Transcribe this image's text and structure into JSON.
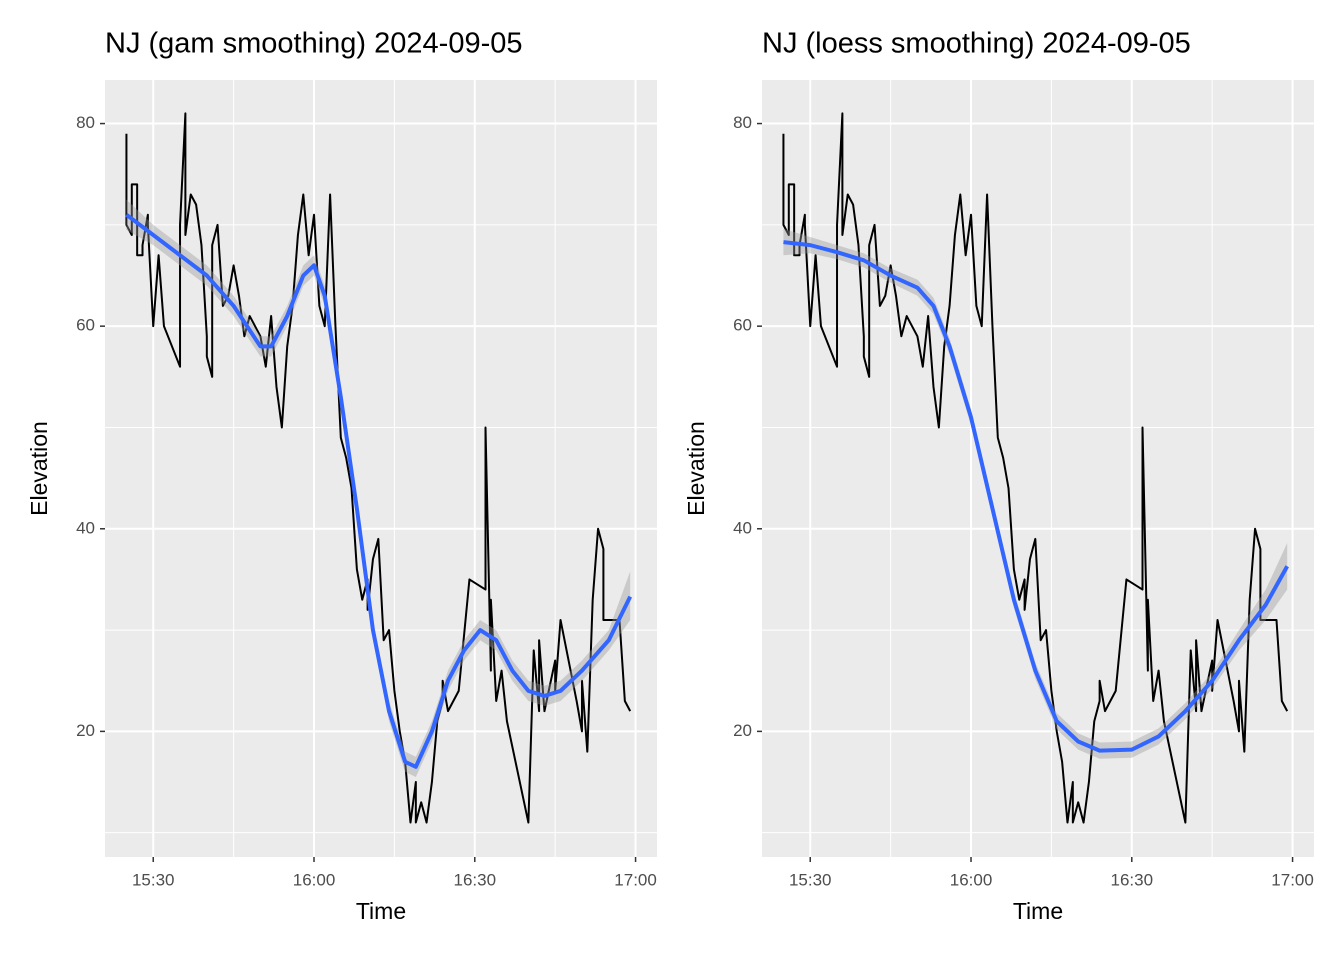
{
  "chart_data": [
    {
      "type": "line",
      "title": "NJ (gam smoothing) 2024-09-05",
      "xlabel": "Time",
      "ylabel": "Elevation",
      "xlim": [
        "15:21",
        "17:04"
      ],
      "xticks": [
        "15:30",
        "16:00",
        "16:30",
        "17:00"
      ],
      "minor_xticks": [
        "15:45",
        "16:15",
        "16:45"
      ],
      "ylim": [
        7.6,
        84.3
      ],
      "yticks": [
        20,
        40,
        60,
        80
      ],
      "minor_yticks": [
        10,
        30,
        50,
        70
      ],
      "grid": true,
      "series": [
        {
          "color": "#000000",
          "x": [
            "15:25",
            "15:25",
            "15:26",
            "15:26",
            "15:27",
            "15:27",
            "15:28",
            "15:28",
            "15:29",
            "15:29",
            "15:30",
            "15:30",
            "15:31",
            "15:32",
            "15:35",
            "15:35",
            "15:36",
            "15:36",
            "15:37",
            "15:38",
            "15:39",
            "15:40",
            "15:40",
            "15:41",
            "15:41",
            "15:42",
            "15:43",
            "15:44",
            "15:45",
            "15:46",
            "15:47",
            "15:48",
            "15:49",
            "15:50",
            "15:51",
            "15:52",
            "15:53",
            "15:54",
            "15:55",
            "15:56",
            "15:57",
            "15:58",
            "15:59",
            "16:00",
            "16:01",
            "16:02",
            "16:03",
            "16:04",
            "16:05",
            "16:06",
            "16:07",
            "16:08",
            "16:09",
            "16:10",
            "16:10",
            "16:11",
            "16:12",
            "16:13",
            "16:14",
            "16:15",
            "16:16",
            "16:17",
            "16:18",
            "16:19",
            "16:19",
            "16:20",
            "16:21",
            "16:22",
            "16:23",
            "16:24",
            "16:24",
            "16:25",
            "16:27",
            "16:29",
            "16:32",
            "16:32",
            "16:33",
            "16:33",
            "16:34",
            "16:35",
            "16:36",
            "16:40",
            "16:41",
            "16:42",
            "16:42",
            "16:43",
            "16:45",
            "16:45",
            "16:46",
            "16:49",
            "16:50",
            "16:50",
            "16:51",
            "16:52",
            "16:53",
            "16:54",
            "16:54",
            "16:57",
            "16:58",
            "16:59"
          ],
          "values": [
            79,
            70,
            69,
            74,
            74,
            67,
            67,
            68,
            71,
            70,
            60,
            60,
            67,
            60,
            56,
            70,
            81,
            69,
            73,
            72,
            68,
            59,
            57,
            55,
            68,
            70,
            62,
            63,
            66,
            63,
            59,
            61,
            60,
            59,
            56,
            61,
            54,
            50,
            58,
            62,
            69,
            73,
            67,
            71,
            62,
            60,
            73,
            60,
            49,
            47,
            44,
            36,
            33,
            35,
            32,
            37,
            39,
            29,
            30,
            24,
            20,
            17,
            11,
            15,
            11,
            13,
            11,
            15,
            21,
            23,
            25,
            22,
            24,
            35,
            34,
            50,
            26,
            33,
            23,
            26,
            21,
            11,
            28,
            22,
            29,
            22,
            27,
            24,
            31,
            23,
            20,
            25,
            18,
            33,
            40,
            38,
            31,
            31,
            23,
            22
          ]
        },
        {
          "color": "#3366ff",
          "band_color": "#999999",
          "x": [
            "15:25",
            "15:30",
            "15:35",
            "15:40",
            "15:45",
            "15:50",
            "15:52",
            "15:55",
            "15:58",
            "16:00",
            "16:02",
            "16:05",
            "16:08",
            "16:11",
            "16:14",
            "16:17",
            "16:19",
            "16:22",
            "16:25",
            "16:28",
            "16:31",
            "16:34",
            "16:37",
            "16:40",
            "16:43",
            "16:46",
            "16:50",
            "16:55",
            "16:59"
          ],
          "values": [
            71,
            69,
            67,
            65,
            62,
            58,
            58,
            61,
            65,
            66,
            63,
            53,
            42,
            30,
            22,
            17,
            16.5,
            20,
            25,
            28,
            30,
            29,
            26,
            24,
            23.5,
            24,
            26,
            29,
            33.3
          ],
          "lower": [
            69.5,
            68,
            66,
            64,
            61,
            57,
            57,
            60,
            64,
            65,
            62,
            52,
            41,
            29,
            21,
            16,
            15.5,
            19,
            24,
            27,
            29,
            28,
            25,
            23,
            22.5,
            23,
            25,
            28,
            31
          ],
          "upper": [
            72.5,
            70,
            68,
            66,
            63,
            59,
            59,
            62,
            66,
            67,
            64,
            54,
            43,
            31,
            23,
            18,
            17.5,
            21,
            26,
            29,
            31,
            30,
            27,
            25,
            24.5,
            25,
            27,
            30,
            35.8
          ]
        }
      ]
    },
    {
      "type": "line",
      "title": "NJ (loess smoothing) 2024-09-05",
      "xlabel": "Time",
      "ylabel": "Elevation",
      "xlim": [
        "15:21",
        "17:04"
      ],
      "xticks": [
        "15:30",
        "16:00",
        "16:30",
        "17:00"
      ],
      "minor_xticks": [
        "15:45",
        "16:15",
        "16:45"
      ],
      "ylim": [
        7.6,
        84.3
      ],
      "yticks": [
        20,
        40,
        60,
        80
      ],
      "minor_yticks": [
        10,
        30,
        50,
        70
      ],
      "grid": true,
      "series": [
        {
          "color": "#000000",
          "x": [
            "15:25",
            "15:25",
            "15:26",
            "15:26",
            "15:27",
            "15:27",
            "15:28",
            "15:28",
            "15:29",
            "15:29",
            "15:30",
            "15:30",
            "15:31",
            "15:32",
            "15:35",
            "15:35",
            "15:36",
            "15:36",
            "15:37",
            "15:38",
            "15:39",
            "15:40",
            "15:40",
            "15:41",
            "15:41",
            "15:42",
            "15:43",
            "15:44",
            "15:45",
            "15:46",
            "15:47",
            "15:48",
            "15:49",
            "15:50",
            "15:51",
            "15:52",
            "15:53",
            "15:54",
            "15:55",
            "15:56",
            "15:57",
            "15:58",
            "15:59",
            "16:00",
            "16:01",
            "16:02",
            "16:03",
            "16:04",
            "16:05",
            "16:06",
            "16:07",
            "16:08",
            "16:09",
            "16:10",
            "16:10",
            "16:11",
            "16:12",
            "16:13",
            "16:14",
            "16:15",
            "16:16",
            "16:17",
            "16:18",
            "16:19",
            "16:19",
            "16:20",
            "16:21",
            "16:22",
            "16:23",
            "16:24",
            "16:24",
            "16:25",
            "16:27",
            "16:29",
            "16:32",
            "16:32",
            "16:33",
            "16:33",
            "16:34",
            "16:35",
            "16:36",
            "16:40",
            "16:41",
            "16:42",
            "16:42",
            "16:43",
            "16:45",
            "16:45",
            "16:46",
            "16:49",
            "16:50",
            "16:50",
            "16:51",
            "16:52",
            "16:53",
            "16:54",
            "16:54",
            "16:57",
            "16:58",
            "16:59"
          ],
          "values": [
            79,
            70,
            69,
            74,
            74,
            67,
            67,
            68,
            71,
            70,
            60,
            60,
            67,
            60,
            56,
            70,
            81,
            69,
            73,
            72,
            68,
            59,
            57,
            55,
            68,
            70,
            62,
            63,
            66,
            63,
            59,
            61,
            60,
            59,
            56,
            61,
            54,
            50,
            58,
            62,
            69,
            73,
            67,
            71,
            62,
            60,
            73,
            60,
            49,
            47,
            44,
            36,
            33,
            35,
            32,
            37,
            39,
            29,
            30,
            24,
            20,
            17,
            11,
            15,
            11,
            13,
            11,
            15,
            21,
            23,
            25,
            22,
            24,
            35,
            34,
            50,
            26,
            33,
            23,
            26,
            21,
            11,
            28,
            22,
            29,
            22,
            27,
            24,
            31,
            23,
            20,
            25,
            18,
            33,
            40,
            38,
            31,
            31,
            23,
            22
          ]
        },
        {
          "color": "#3366ff",
          "band_color": "#999999",
          "x": [
            "15:25",
            "15:30",
            "15:35",
            "15:40",
            "15:45",
            "15:50",
            "15:53",
            "15:56",
            "16:00",
            "16:04",
            "16:08",
            "16:12",
            "16:16",
            "16:20",
            "16:24",
            "16:30",
            "16:35",
            "16:40",
            "16:45",
            "16:50",
            "16:55",
            "16:59"
          ],
          "values": [
            68.3,
            68,
            67.3,
            66.5,
            65,
            63.8,
            62,
            58,
            51,
            42,
            33,
            26,
            21,
            19,
            18.1,
            18.2,
            19.5,
            22,
            25,
            29,
            32.5,
            36.3
          ],
          "lower": [
            67,
            67.2,
            66.6,
            65.8,
            64.3,
            63,
            61.2,
            57.2,
            50.2,
            41.2,
            32.2,
            25.2,
            20.2,
            18.2,
            17.3,
            17.4,
            18.7,
            21.2,
            24.2,
            28,
            31,
            34
          ],
          "upper": [
            69.6,
            68.8,
            68,
            67.2,
            65.7,
            64.6,
            62.8,
            58.8,
            51.8,
            42.8,
            33.8,
            26.8,
            21.8,
            19.8,
            18.9,
            19,
            20.3,
            22.8,
            25.8,
            30,
            34,
            38.6
          ]
        }
      ]
    }
  ]
}
